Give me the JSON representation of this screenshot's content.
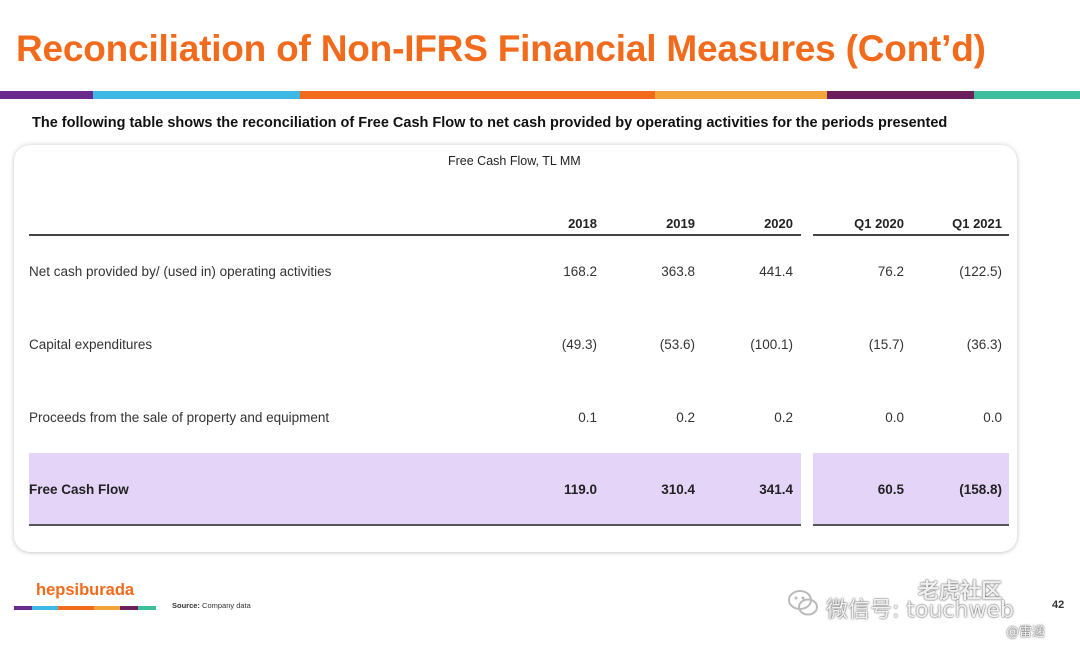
{
  "header": {
    "title": "Reconciliation of Non-IFRS Financial Measures (Cont’d)",
    "subtitle": "The following table shows the reconciliation of Free Cash Flow to net cash provided by operating activities for the periods presented"
  },
  "colors": {
    "accent_orange": "#f26a1b",
    "bar_purple": "#6a2a8c",
    "bar_blue": "#3fb8e6",
    "bar_orange": "#f26a1b",
    "bar_amber": "#f3a43a",
    "bar_plum": "#6b1e5c",
    "bar_teal": "#3dbf9c",
    "highlight_lavender": "#e4d5f8"
  },
  "table": {
    "caption": "Free Cash Flow, TL MM",
    "columns": [
      "2018",
      "2019",
      "2020",
      "Q1 2020",
      "Q1 2021"
    ],
    "rows": [
      {
        "label": "Net cash provided by/ (used in) operating activities",
        "values": [
          "168.2",
          "363.8",
          "441.4",
          "76.2",
          "(122.5)"
        ]
      },
      {
        "label": "Capital expenditures",
        "values": [
          "(49.3)",
          "(53.6)",
          "(100.1)",
          "(15.7)",
          "(36.3)"
        ]
      },
      {
        "label": "Proceeds from the sale of property and equipment",
        "values": [
          "0.1",
          "0.2",
          "0.2",
          "0.0",
          "0.0"
        ]
      },
      {
        "label": "Free Cash Flow",
        "values": [
          "119.0",
          "310.4",
          "341.4",
          "60.5",
          "(158.8)"
        ],
        "highlighted": true
      }
    ]
  },
  "footer": {
    "logo": "hepsiburada",
    "source_label": "Source:",
    "source_text": "Company data",
    "page_number": "42"
  },
  "watermark": {
    "line1": "微信号: touchweb",
    "line2": "老虎社区",
    "line3": "@雷递"
  }
}
